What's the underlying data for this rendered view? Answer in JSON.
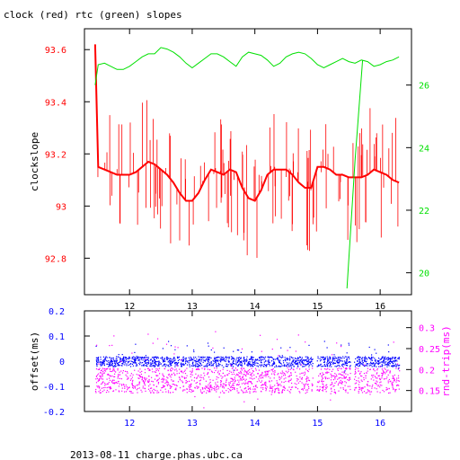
{
  "title": "clock (red) rtc (green) slopes",
  "footer": "2013-08-11 charge.phas.ubc.ca",
  "colors": {
    "clock": "#ff0000",
    "rtc": "#00e000",
    "offset": "#0000ff",
    "rndtrip": "#ff00ff",
    "axis": "#000000"
  },
  "chart_data": [
    {
      "type": "line",
      "title": "clock (red) rtc (green) slopes",
      "xlim": [
        11.28,
        16.5
      ],
      "x_ticks": [
        "12",
        "13",
        "14",
        "15",
        "16"
      ],
      "grid": false,
      "y_left": {
        "label": "clockslope",
        "lim": [
          92.66,
          93.68
        ],
        "ticks": [
          "93.6",
          "93.4",
          "93.2",
          "93",
          "92.8"
        ],
        "color": "#ff0000"
      },
      "y_right": {
        "label": "",
        "lim": [
          19.3,
          27.8
        ],
        "ticks": [
          "26",
          "24",
          "22",
          "20"
        ],
        "color": "#00e000"
      },
      "series": [
        {
          "name": "clock",
          "axis": "left",
          "x": [
            11.45,
            11.5,
            11.6,
            11.7,
            11.8,
            11.9,
            12.0,
            12.1,
            12.2,
            12.3,
            12.4,
            12.5,
            12.6,
            12.7,
            12.8,
            12.9,
            13.0,
            13.1,
            13.2,
            13.3,
            13.4,
            13.5,
            13.6,
            13.7,
            13.8,
            13.9,
            14.0,
            14.1,
            14.2,
            14.3,
            14.4,
            14.5,
            14.6,
            14.7,
            14.8,
            14.9,
            15.0,
            15.1,
            15.2,
            15.3,
            15.4,
            15.5,
            15.6,
            15.7,
            15.8,
            15.9,
            16.0,
            16.1,
            16.2,
            16.3
          ],
          "y": [
            93.62,
            93.15,
            93.14,
            93.13,
            93.12,
            93.12,
            93.12,
            93.13,
            93.15,
            93.17,
            93.16,
            93.14,
            93.12,
            93.09,
            93.05,
            93.02,
            93.02,
            93.05,
            93.1,
            93.14,
            93.13,
            93.12,
            93.14,
            93.13,
            93.07,
            93.03,
            93.02,
            93.06,
            93.12,
            93.14,
            93.14,
            93.14,
            93.12,
            93.09,
            93.07,
            93.07,
            93.15,
            93.15,
            93.14,
            93.12,
            93.12,
            93.11,
            93.11,
            93.11,
            93.12,
            93.14,
            93.13,
            93.12,
            93.1,
            93.09
          ]
        },
        {
          "name": "rtc",
          "axis": "right",
          "x": [
            11.45,
            11.5,
            11.6,
            11.7,
            11.8,
            11.9,
            12.0,
            12.1,
            12.2,
            12.3,
            12.4,
            12.5,
            12.6,
            12.7,
            12.8,
            12.9,
            13.0,
            13.1,
            13.2,
            13.3,
            13.4,
            13.5,
            13.6,
            13.7,
            13.8,
            13.9,
            14.0,
            14.1,
            14.2,
            14.3,
            14.4,
            14.5,
            14.6,
            14.7,
            14.8,
            14.9,
            15.0,
            15.1,
            15.2,
            15.3,
            15.4,
            15.5,
            15.6,
            15.7,
            15.8,
            15.9,
            16.0,
            16.1,
            16.2,
            16.3
          ],
          "y": [
            26.0,
            26.65,
            26.7,
            26.6,
            26.5,
            26.5,
            26.6,
            26.75,
            26.9,
            27.0,
            27.0,
            27.2,
            27.15,
            27.05,
            26.9,
            26.7,
            26.55,
            26.7,
            26.85,
            27.0,
            27.0,
            26.9,
            26.75,
            26.6,
            26.9,
            27.05,
            27.0,
            26.95,
            26.8,
            26.6,
            26.7,
            26.9,
            27.0,
            27.05,
            27.0,
            26.85,
            26.65,
            26.55,
            26.65,
            26.75,
            26.85,
            26.75,
            26.7,
            26.8,
            26.75,
            26.6,
            26.65,
            26.75,
            26.8,
            26.9
          ]
        },
        {
          "name": "rtc-jump",
          "axis": "right",
          "x": [
            15.47,
            15.6,
            15.72
          ],
          "y": [
            19.5,
            23.6,
            26.8
          ]
        }
      ]
    },
    {
      "type": "scatter",
      "xlim": [
        11.28,
        16.5
      ],
      "x_ticks": [
        "12",
        "13",
        "14",
        "15",
        "16"
      ],
      "grid": false,
      "y_left": {
        "label": "offset(ms)",
        "lim": [
          -0.2,
          0.2
        ],
        "ticks": [
          "0.2",
          "0.1",
          "0",
          "-0.1",
          "-0.2"
        ],
        "color": "#0000ff"
      },
      "y_right": {
        "label": "rnd-trip(ms)",
        "lim": [
          0.1,
          0.34
        ],
        "ticks": [
          "0.3",
          "0.25",
          "0.2",
          "0.15"
        ],
        "color": "#ff00ff"
      },
      "series": [
        {
          "name": "offset",
          "axis": "left",
          "band_center": 0.0,
          "band_halfwidth": 0.02,
          "x_start": 11.45,
          "x_end": 16.3,
          "gaps": [
            [
              14.92,
              14.98
            ],
            [
              15.52,
              15.58
            ]
          ]
        },
        {
          "name": "rnd-trip",
          "axis": "right",
          "band_center": 0.175,
          "band_halfwidth": 0.03,
          "x_start": 11.45,
          "x_end": 16.3,
          "gaps": [
            [
              14.92,
              14.98
            ],
            [
              15.52,
              15.58
            ]
          ]
        }
      ]
    }
  ]
}
